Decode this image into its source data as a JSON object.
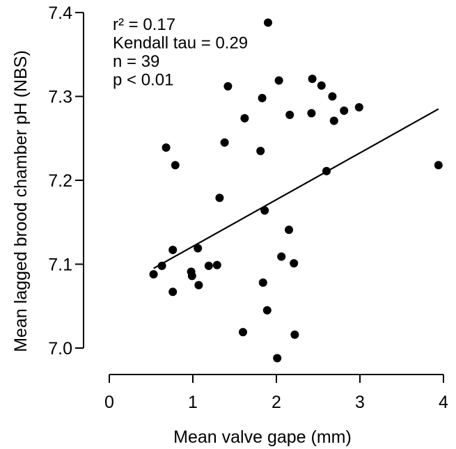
{
  "chart_data": {
    "type": "scatter",
    "xlabel": "Mean valve gape (mm)",
    "ylabel": "Mean lagged brood chamber pH (NBS)",
    "xlim": [
      0,
      4
    ],
    "ylim": [
      7.0,
      7.4
    ],
    "x_ticks": [
      0,
      1,
      2,
      3,
      4
    ],
    "x_tick_labels": [
      "0",
      "1",
      "2",
      "3",
      "4"
    ],
    "y_ticks": [
      7.0,
      7.1,
      7.2,
      7.3,
      7.4
    ],
    "y_tick_labels": [
      "7.0",
      "7.1",
      "7.2",
      "7.3",
      "7.4"
    ],
    "grid": false,
    "point_color": "#000000",
    "points": [
      {
        "x": 0.53,
        "y": 7.088
      },
      {
        "x": 0.63,
        "y": 7.098
      },
      {
        "x": 0.68,
        "y": 7.239
      },
      {
        "x": 0.76,
        "y": 7.117
      },
      {
        "x": 0.76,
        "y": 7.067
      },
      {
        "x": 0.79,
        "y": 7.218
      },
      {
        "x": 0.98,
        "y": 7.091
      },
      {
        "x": 0.99,
        "y": 7.086
      },
      {
        "x": 1.06,
        "y": 7.119
      },
      {
        "x": 1.07,
        "y": 7.075
      },
      {
        "x": 1.19,
        "y": 7.098
      },
      {
        "x": 1.29,
        "y": 7.099
      },
      {
        "x": 1.32,
        "y": 7.179
      },
      {
        "x": 1.38,
        "y": 7.245
      },
      {
        "x": 1.42,
        "y": 7.312
      },
      {
        "x": 1.6,
        "y": 7.019
      },
      {
        "x": 1.62,
        "y": 7.274
      },
      {
        "x": 1.81,
        "y": 7.235
      },
      {
        "x": 1.83,
        "y": 7.298
      },
      {
        "x": 1.84,
        "y": 7.078
      },
      {
        "x": 1.86,
        "y": 7.164
      },
      {
        "x": 1.89,
        "y": 7.045
      },
      {
        "x": 1.9,
        "y": 7.388
      },
      {
        "x": 2.01,
        "y": 6.988
      },
      {
        "x": 2.03,
        "y": 7.319
      },
      {
        "x": 2.06,
        "y": 7.109
      },
      {
        "x": 2.15,
        "y": 7.141
      },
      {
        "x": 2.16,
        "y": 7.278
      },
      {
        "x": 2.21,
        "y": 7.101
      },
      {
        "x": 2.22,
        "y": 7.016
      },
      {
        "x": 2.42,
        "y": 7.28
      },
      {
        "x": 2.43,
        "y": 7.321
      },
      {
        "x": 2.54,
        "y": 7.313
      },
      {
        "x": 2.6,
        "y": 7.211
      },
      {
        "x": 2.67,
        "y": 7.3
      },
      {
        "x": 2.69,
        "y": 7.271
      },
      {
        "x": 2.81,
        "y": 7.283
      },
      {
        "x": 2.99,
        "y": 7.287
      },
      {
        "x": 3.94,
        "y": 7.218
      }
    ],
    "fit_line": {
      "x": [
        0.53,
        3.94
      ],
      "y": [
        7.095,
        7.285
      ]
    },
    "annotations": [
      "r² = 0.17",
      "Kendall tau = 0.29",
      "n = 39",
      "p < 0.01"
    ]
  }
}
